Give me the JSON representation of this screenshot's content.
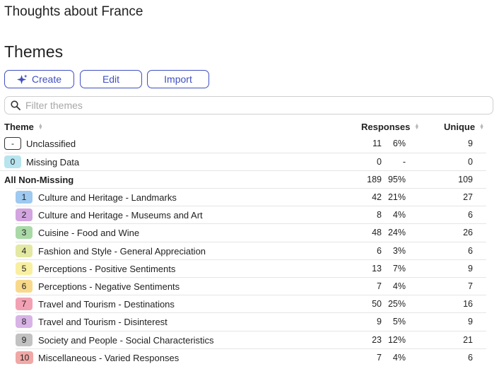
{
  "app_title": "Thoughts about France",
  "section_title": "Themes",
  "toolbar": {
    "create_label": "Create",
    "edit_label": "Edit",
    "import_label": "Import"
  },
  "filter": {
    "placeholder": "Filter themes",
    "value": ""
  },
  "columns": {
    "theme": "Theme",
    "responses": "Responses",
    "unique": "Unique"
  },
  "special_rows": {
    "unclassified": {
      "badge": "-",
      "label": "Unclassified",
      "count": "11",
      "pct": "6%",
      "unique": "9"
    },
    "missing": {
      "badge": "0",
      "label": "Missing Data",
      "count": "0",
      "pct": "-",
      "unique": "0",
      "color": "#b7e4ee"
    },
    "all": {
      "label": "All Non-Missing",
      "count": "189",
      "pct": "95%",
      "unique": "109"
    }
  },
  "themes": [
    {
      "badge": "1",
      "label": "Culture and Heritage - Landmarks",
      "count": "42",
      "pct": "21%",
      "unique": "27",
      "color": "#9ec9f0"
    },
    {
      "badge": "2",
      "label": "Culture and Heritage - Museums and Art",
      "count": "8",
      "pct": "4%",
      "unique": "6",
      "color": "#d2a4e0"
    },
    {
      "badge": "3",
      "label": "Cuisine - Food and Wine",
      "count": "48",
      "pct": "24%",
      "unique": "26",
      "color": "#a9d9a7"
    },
    {
      "badge": "4",
      "label": "Fashion and Style - General Appreciation",
      "count": "6",
      "pct": "3%",
      "unique": "6",
      "color": "#e3e8a2"
    },
    {
      "badge": "5",
      "label": "Perceptions - Positive Sentiments",
      "count": "13",
      "pct": "7%",
      "unique": "9",
      "color": "#f8efa1"
    },
    {
      "badge": "6",
      "label": "Perceptions - Negative Sentiments",
      "count": "7",
      "pct": "4%",
      "unique": "7",
      "color": "#f8d98b"
    },
    {
      "badge": "7",
      "label": "Travel and Tourism - Destinations",
      "count": "50",
      "pct": "25%",
      "unique": "16",
      "color": "#f2a1b3"
    },
    {
      "badge": "8",
      "label": "Travel and Tourism - Disinterest",
      "count": "9",
      "pct": "5%",
      "unique": "9",
      "color": "#d8b3e6"
    },
    {
      "badge": "9",
      "label": "Society and People - Social Characteristics",
      "count": "23",
      "pct": "12%",
      "unique": "21",
      "color": "#c2c2c2"
    },
    {
      "badge": "10",
      "label": "Miscellaneous - Varied Responses",
      "count": "7",
      "pct": "4%",
      "unique": "6",
      "color": "#f0a8a6"
    }
  ]
}
